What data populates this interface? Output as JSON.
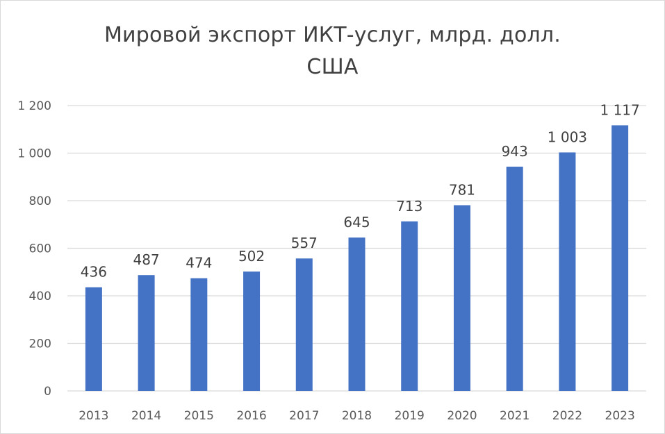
{
  "chart_data": {
    "type": "bar",
    "title_lines": [
      "Мировой экспорт ИКТ-услуг, млрд. долл.",
      "США"
    ],
    "categories": [
      "2013",
      "2014",
      "2015",
      "2016",
      "2017",
      "2018",
      "2019",
      "2020",
      "2021",
      "2022",
      "2023"
    ],
    "values": [
      436,
      487,
      474,
      502,
      557,
      645,
      713,
      781,
      943,
      1003,
      1117
    ],
    "data_labels": [
      "436",
      "487",
      "474",
      "502",
      "557",
      "645",
      "713",
      "781",
      "943",
      "1 003",
      "1 117"
    ],
    "y_ticks": [
      0,
      200,
      400,
      600,
      800,
      1000,
      1200
    ],
    "y_tick_labels": [
      "0",
      "200",
      "400",
      "600",
      "800",
      "1 000",
      "1 200"
    ],
    "ylim": [
      0,
      1200
    ],
    "grid": true,
    "legend": "none",
    "bar_color": "#4472c4",
    "grid_color": "#d9d9d9"
  }
}
